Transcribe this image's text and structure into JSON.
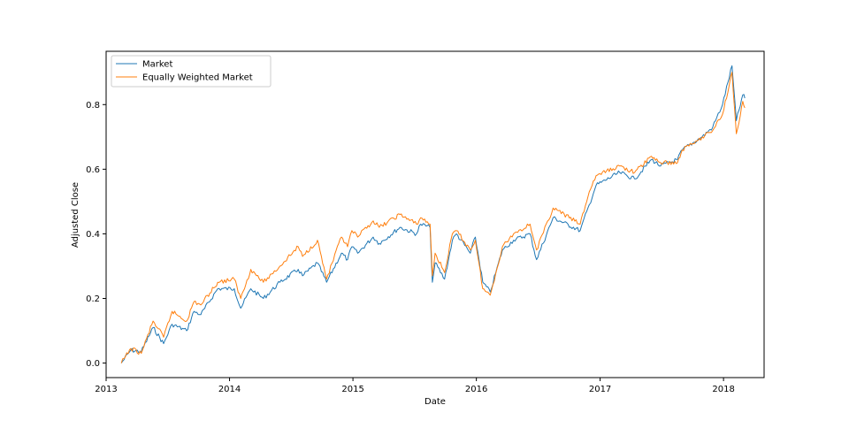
{
  "chart_data": {
    "type": "line",
    "xlabel": "Date",
    "ylabel": "Adjusted Close",
    "xlim": [
      "2013-01-01",
      "2018-05-01"
    ],
    "ylim": [
      -0.045,
      0.965
    ],
    "x_ticks": [
      "2013",
      "2014",
      "2015",
      "2016",
      "2017",
      "2018"
    ],
    "y_ticks": [
      "0.0",
      "0.2",
      "0.4",
      "0.6",
      "0.8"
    ],
    "grid": false,
    "legend_position": "upper-left",
    "series": [
      {
        "name": "Market",
        "color": "#1f77b4",
        "points": [
          [
            "2013-02-15",
            0.0
          ],
          [
            "2013-03-15",
            0.04
          ],
          [
            "2013-04-15",
            0.035
          ],
          [
            "2013-05-20",
            0.11
          ],
          [
            "2013-06-20",
            0.06
          ],
          [
            "2013-07-15",
            0.12
          ],
          [
            "2013-08-27",
            0.1
          ],
          [
            "2013-09-18",
            0.16
          ],
          [
            "2013-10-08",
            0.15
          ],
          [
            "2013-11-27",
            0.23
          ],
          [
            "2014-01-15",
            0.23
          ],
          [
            "2014-02-03",
            0.17
          ],
          [
            "2014-03-05",
            0.23
          ],
          [
            "2014-04-11",
            0.2
          ],
          [
            "2014-05-30",
            0.25
          ],
          [
            "2014-07-23",
            0.29
          ],
          [
            "2014-08-05",
            0.27
          ],
          [
            "2014-09-18",
            0.31
          ],
          [
            "2014-10-15",
            0.25
          ],
          [
            "2014-11-28",
            0.34
          ],
          [
            "2014-12-16",
            0.32
          ],
          [
            "2014-12-29",
            0.36
          ],
          [
            "2015-01-15",
            0.34
          ],
          [
            "2015-03-02",
            0.39
          ],
          [
            "2015-03-20",
            0.37
          ],
          [
            "2015-05-20",
            0.42
          ],
          [
            "2015-07-08",
            0.4
          ],
          [
            "2015-07-20",
            0.43
          ],
          [
            "2015-08-17",
            0.42
          ],
          [
            "2015-08-24",
            0.25
          ],
          [
            "2015-09-01",
            0.31
          ],
          [
            "2015-09-29",
            0.26
          ],
          [
            "2015-10-22",
            0.38
          ],
          [
            "2015-11-03",
            0.4
          ],
          [
            "2015-12-14",
            0.34
          ],
          [
            "2015-12-29",
            0.39
          ],
          [
            "2016-01-20",
            0.25
          ],
          [
            "2016-02-11",
            0.22
          ],
          [
            "2016-03-18",
            0.35
          ],
          [
            "2016-04-20",
            0.38
          ],
          [
            "2016-06-08",
            0.4
          ],
          [
            "2016-06-27",
            0.32
          ],
          [
            "2016-08-15",
            0.45
          ],
          [
            "2016-11-03",
            0.41
          ],
          [
            "2016-11-30",
            0.49
          ],
          [
            "2016-12-20",
            0.55
          ],
          [
            "2017-02-28",
            0.59
          ],
          [
            "2017-04-13",
            0.57
          ],
          [
            "2017-06-02",
            0.63
          ],
          [
            "2017-06-29",
            0.61
          ],
          [
            "2017-08-18",
            0.63
          ],
          [
            "2017-09-01",
            0.66
          ],
          [
            "2017-10-30",
            0.7
          ],
          [
            "2017-11-30",
            0.73
          ],
          [
            "2017-12-29",
            0.8
          ],
          [
            "2018-01-26",
            0.92
          ],
          [
            "2018-02-08",
            0.75
          ],
          [
            "2018-02-27",
            0.83
          ],
          [
            "2018-03-05",
            0.82
          ]
        ]
      },
      {
        "name": "Equally Weighted Market",
        "color": "#ff7f0e",
        "points": [
          [
            "2013-02-15",
            0.0
          ],
          [
            "2013-03-15",
            0.045
          ],
          [
            "2013-04-15",
            0.03
          ],
          [
            "2013-05-20",
            0.13
          ],
          [
            "2013-06-20",
            0.08
          ],
          [
            "2013-07-15",
            0.16
          ],
          [
            "2013-08-27",
            0.13
          ],
          [
            "2013-09-18",
            0.19
          ],
          [
            "2013-10-08",
            0.18
          ],
          [
            "2013-11-27",
            0.25
          ],
          [
            "2014-01-15",
            0.26
          ],
          [
            "2014-02-03",
            0.2
          ],
          [
            "2014-03-05",
            0.29
          ],
          [
            "2014-04-11",
            0.25
          ],
          [
            "2014-05-30",
            0.3
          ],
          [
            "2014-07-23",
            0.36
          ],
          [
            "2014-08-05",
            0.33
          ],
          [
            "2014-09-18",
            0.38
          ],
          [
            "2014-10-15",
            0.26
          ],
          [
            "2014-11-28",
            0.39
          ],
          [
            "2014-12-16",
            0.36
          ],
          [
            "2014-12-29",
            0.41
          ],
          [
            "2015-01-15",
            0.39
          ],
          [
            "2015-03-02",
            0.44
          ],
          [
            "2015-03-20",
            0.42
          ],
          [
            "2015-05-20",
            0.46
          ],
          [
            "2015-07-08",
            0.43
          ],
          [
            "2015-07-20",
            0.45
          ],
          [
            "2015-08-17",
            0.43
          ],
          [
            "2015-08-24",
            0.27
          ],
          [
            "2015-09-01",
            0.34
          ],
          [
            "2015-09-29",
            0.28
          ],
          [
            "2015-10-22",
            0.4
          ],
          [
            "2015-11-03",
            0.41
          ],
          [
            "2015-12-14",
            0.35
          ],
          [
            "2015-12-29",
            0.38
          ],
          [
            "2016-01-20",
            0.23
          ],
          [
            "2016-02-11",
            0.21
          ],
          [
            "2016-03-18",
            0.36
          ],
          [
            "2016-04-20",
            0.4
          ],
          [
            "2016-06-08",
            0.43
          ],
          [
            "2016-06-27",
            0.35
          ],
          [
            "2016-08-15",
            0.48
          ],
          [
            "2016-11-03",
            0.43
          ],
          [
            "2016-11-30",
            0.53
          ],
          [
            "2016-12-20",
            0.58
          ],
          [
            "2017-02-28",
            0.61
          ],
          [
            "2017-04-13",
            0.59
          ],
          [
            "2017-06-02",
            0.64
          ],
          [
            "2017-06-29",
            0.62
          ],
          [
            "2017-08-18",
            0.62
          ],
          [
            "2017-09-01",
            0.66
          ],
          [
            "2017-10-30",
            0.7
          ],
          [
            "2017-11-30",
            0.72
          ],
          [
            "2017-12-29",
            0.77
          ],
          [
            "2018-01-26",
            0.9
          ],
          [
            "2018-02-08",
            0.71
          ],
          [
            "2018-02-27",
            0.81
          ],
          [
            "2018-03-05",
            0.79
          ]
        ]
      }
    ]
  }
}
